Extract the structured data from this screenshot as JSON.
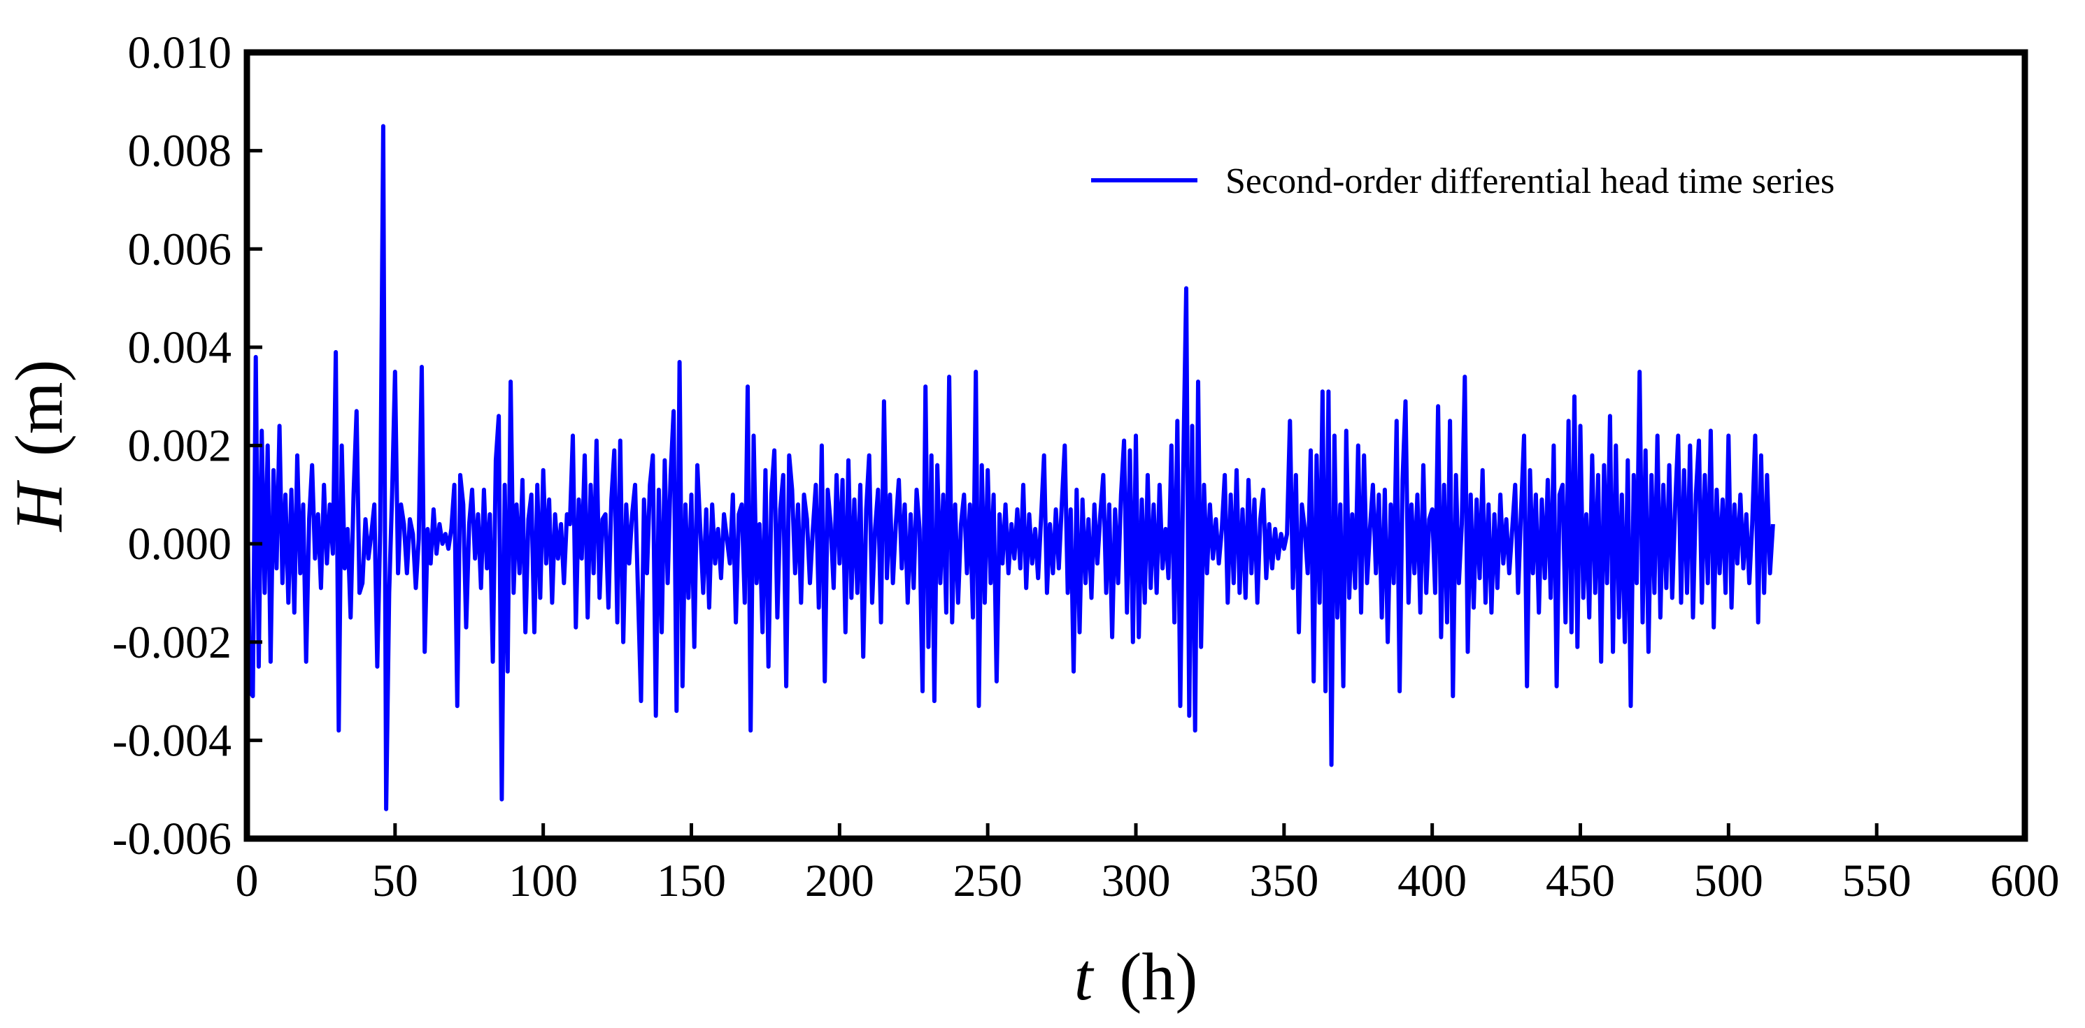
{
  "chart_data": {
    "type": "line",
    "title": "",
    "xlabel": {
      "var": "t",
      "unit": "(h)"
    },
    "ylabel": {
      "var": "H",
      "unit": "(m)"
    },
    "xlim": [
      0,
      600
    ],
    "ylim": [
      -0.006,
      0.01
    ],
    "x_ticks": [
      0,
      50,
      100,
      150,
      200,
      250,
      300,
      350,
      400,
      450,
      500,
      550,
      600
    ],
    "y_ticks": [
      -0.006,
      -0.004,
      -0.002,
      0.0,
      0.002,
      0.004,
      0.006,
      0.008,
      0.01
    ],
    "x_tick_labels": [
      "0",
      "50",
      "100",
      "150",
      "200",
      "250",
      "300",
      "350",
      "400",
      "450",
      "500",
      "550",
      "600"
    ],
    "y_tick_labels": [
      "-0.006",
      "-0.004",
      "-0.002",
      "0.000",
      "0.002",
      "0.004",
      "0.006",
      "0.008",
      "0.010"
    ],
    "grid": false,
    "legend_position": "top-right",
    "series": [
      {
        "name": "Second-order differential head time series",
        "color": "#0000ff",
        "x_start": 0,
        "x_step": 1,
        "values": [
          0.0018,
          -0.003,
          -0.0031,
          0.0038,
          -0.0025,
          0.0023,
          -0.001,
          0.002,
          -0.0024,
          0.0015,
          -0.0005,
          0.0024,
          -0.0008,
          0.001,
          -0.0012,
          0.0011,
          -0.0014,
          0.0018,
          -0.0006,
          0.0008,
          -0.0024,
          0.0005,
          0.0016,
          -0.0003,
          0.0006,
          -0.0009,
          0.0012,
          -0.0004,
          0.0008,
          -0.0002,
          0.0039,
          -0.0038,
          0.002,
          -0.0005,
          0.0003,
          -0.0015,
          0.001,
          0.0027,
          -0.001,
          -0.0008,
          0.0005,
          -0.0003,
          0.0002,
          0.0008,
          -0.0025,
          0.0003,
          0.0085,
          -0.0054,
          -0.001,
          0.001,
          0.0035,
          -0.0006,
          0.0008,
          0.0004,
          -0.0006,
          0.0005,
          0.0002,
          -0.0009,
          0.0001,
          0.0036,
          -0.0022,
          0.0003,
          -0.0004,
          0.0007,
          -0.0002,
          0.0004,
          0.0,
          0.0002,
          -0.0001,
          0.0003,
          0.0012,
          -0.0033,
          0.0014,
          0.0008,
          -0.0017,
          0.0004,
          0.0011,
          -0.0003,
          0.0006,
          -0.0009,
          0.0011,
          -0.0005,
          0.0006,
          -0.0024,
          0.0017,
          0.0026,
          -0.0052,
          0.0012,
          -0.0026,
          0.0033,
          -0.001,
          0.0008,
          -0.0006,
          0.0013,
          -0.0018,
          0.0005,
          0.001,
          -0.0018,
          0.0012,
          -0.0011,
          0.0015,
          -0.0004,
          0.0009,
          -0.0012,
          0.0006,
          -0.0003,
          0.0004,
          -0.0008,
          0.0006,
          0.0004,
          0.0022,
          -0.0017,
          0.0009,
          -0.0003,
          0.0018,
          -0.0015,
          0.0012,
          -0.0006,
          0.0021,
          -0.0011,
          0.0005,
          0.0006,
          -0.0013,
          0.0009,
          0.0019,
          -0.0016,
          0.0021,
          -0.002,
          0.0008,
          -0.0004,
          0.0006,
          0.0012,
          -0.001,
          -0.0032,
          0.0009,
          -0.0006,
          0.0012,
          0.0018,
          -0.0035,
          0.0011,
          -0.0018,
          0.0017,
          -0.0008,
          0.0014,
          0.0027,
          -0.0034,
          0.0037,
          -0.0029,
          0.0008,
          -0.0011,
          0.001,
          -0.0021,
          0.0016,
          0.0003,
          -0.001,
          0.0007,
          -0.0013,
          0.0008,
          -0.0004,
          0.0003,
          -0.0007,
          0.0006,
          0.0001,
          -0.0004,
          0.001,
          -0.0016,
          0.0006,
          0.0008,
          -0.0012,
          0.0032,
          -0.0038,
          0.0022,
          -0.0008,
          0.0004,
          -0.0018,
          0.0015,
          -0.0025,
          0.001,
          0.0019,
          -0.0015,
          0.0007,
          0.0014,
          -0.0029,
          0.0018,
          0.0011,
          -0.0006,
          0.0008,
          -0.0012,
          0.001,
          0.0005,
          -0.0008,
          0.0003,
          0.0012,
          -0.0013,
          0.002,
          -0.0028,
          0.0011,
          0.0004,
          -0.0009,
          0.0014,
          -0.0004,
          0.0013,
          -0.0018,
          0.0017,
          -0.0011,
          0.0009,
          -0.001,
          0.0012,
          -0.0023,
          0.0007,
          0.0018,
          -0.0012,
          0.0003,
          0.0011,
          -0.0016,
          0.0029,
          -0.0007,
          0.001,
          -0.0008,
          0.0004,
          0.0013,
          -0.0005,
          0.0008,
          -0.0012,
          0.0006,
          -0.0009,
          0.0011,
          0.0003,
          -0.003,
          0.0032,
          -0.0021,
          0.0018,
          -0.0032,
          0.0016,
          -0.0008,
          0.001,
          -0.0014,
          0.0034,
          -0.0016,
          0.0008,
          -0.0012,
          0.0004,
          0.001,
          -0.0006,
          0.0008,
          -0.0015,
          0.0035,
          -0.0033,
          0.0016,
          -0.0012,
          0.0015,
          -0.0008,
          0.001,
          -0.0028,
          0.0006,
          -0.0004,
          0.0008,
          -0.0006,
          0.0004,
          -0.0003,
          0.0007,
          -0.0005,
          0.0012,
          -0.0009,
          0.0006,
          -0.0004,
          0.0003,
          -0.0007,
          0.0005,
          0.0018,
          -0.001,
          0.0004,
          -0.0006,
          0.0007,
          -0.0005,
          0.0008,
          0.002,
          -0.001,
          0.0007,
          -0.0026,
          0.0011,
          -0.0018,
          0.0009,
          -0.0008,
          0.0005,
          -0.0011,
          0.0008,
          -0.0004,
          0.0006,
          0.0014,
          -0.001,
          0.0008,
          -0.0019,
          0.0007,
          -0.0008,
          0.001,
          0.0021,
          -0.0014,
          0.0019,
          -0.002,
          0.0022,
          -0.0019,
          0.0009,
          -0.0012,
          0.0014,
          -0.0009,
          0.0008,
          -0.001,
          0.0012,
          -0.0005,
          0.0003,
          -0.0007,
          0.002,
          -0.0016,
          0.0025,
          -0.0033,
          0.0016,
          0.0052,
          -0.0035,
          0.0024,
          -0.0038,
          0.0033,
          -0.0021,
          0.0012,
          -0.0006,
          0.0008,
          -0.0003,
          0.0005,
          -0.0004,
          0.0003,
          0.0014,
          -0.0012,
          0.001,
          -0.0008,
          0.0015,
          -0.001,
          0.0007,
          -0.0011,
          0.0013,
          -0.0006,
          0.0009,
          -0.0012,
          0.0005,
          0.0011,
          -0.0007,
          0.0004,
          -0.0005,
          0.0003,
          -0.0003,
          0.0002,
          -0.0001,
          0.0002,
          0.0025,
          -0.0009,
          0.0014,
          -0.0018,
          0.0008,
          0.0003,
          -0.0006,
          0.0019,
          -0.0028,
          0.0018,
          -0.0012,
          0.0031,
          -0.003,
          0.0031,
          -0.0045,
          0.0022,
          -0.0015,
          0.0008,
          -0.0029,
          0.0023,
          -0.0011,
          0.0006,
          -0.0009,
          0.002,
          -0.0014,
          0.0018,
          -0.0008,
          0.0003,
          0.0012,
          -0.0006,
          0.001,
          -0.0015,
          0.0011,
          -0.002,
          0.0008,
          -0.0008,
          0.0025,
          -0.003,
          0.0013,
          0.0029,
          -0.0012,
          0.0008,
          -0.0006,
          0.001,
          -0.0014,
          0.0016,
          -0.001,
          0.0005,
          0.0007,
          -0.001,
          0.0028,
          -0.0019,
          0.0012,
          -0.0016,
          0.0025,
          -0.0031,
          0.0014,
          -0.0008,
          0.0004,
          0.0034,
          -0.0022,
          0.001,
          -0.0013,
          0.0009,
          -0.0007,
          0.0015,
          -0.0012,
          0.0008,
          -0.0014,
          0.0006,
          -0.0009,
          0.001,
          -0.0004,
          0.0005,
          -0.0006,
          0.0003,
          0.0012,
          -0.001,
          0.0007,
          0.0022,
          -0.0029,
          0.0015,
          -0.0006,
          0.001,
          -0.0014,
          0.0009,
          -0.0007,
          0.0013,
          -0.0011,
          0.002,
          -0.0029,
          0.001,
          0.0012,
          -0.0016,
          0.0025,
          -0.0018,
          0.003,
          -0.0021,
          0.0024,
          -0.0011,
          0.0006,
          -0.0015,
          0.0018,
          -0.001,
          0.0014,
          -0.0024,
          0.0016,
          -0.0008,
          0.0026,
          -0.0022,
          0.002,
          -0.0015,
          0.001,
          -0.002,
          0.0017,
          -0.0033,
          0.0014,
          -0.0008,
          0.0035,
          -0.0016,
          0.0019,
          -0.0022,
          0.0014,
          -0.001,
          0.0022,
          -0.0015,
          0.0012,
          -0.0009,
          0.0016,
          -0.0011,
          0.0008,
          0.0022,
          -0.0012,
          0.0015,
          -0.001,
          0.002,
          -0.0015,
          0.001,
          0.0021,
          -0.0012,
          0.0014,
          -0.0008,
          0.0023,
          -0.0017,
          0.0011,
          -0.0006,
          0.0009,
          -0.001,
          0.0022,
          -0.0013,
          0.0008,
          -0.0004,
          0.001,
          -0.0005,
          0.0006,
          -0.0008,
          0.0004,
          0.0022,
          -0.0016,
          0.0018,
          -0.001,
          0.0014,
          -0.0006,
          0.0004
        ]
      }
    ]
  }
}
